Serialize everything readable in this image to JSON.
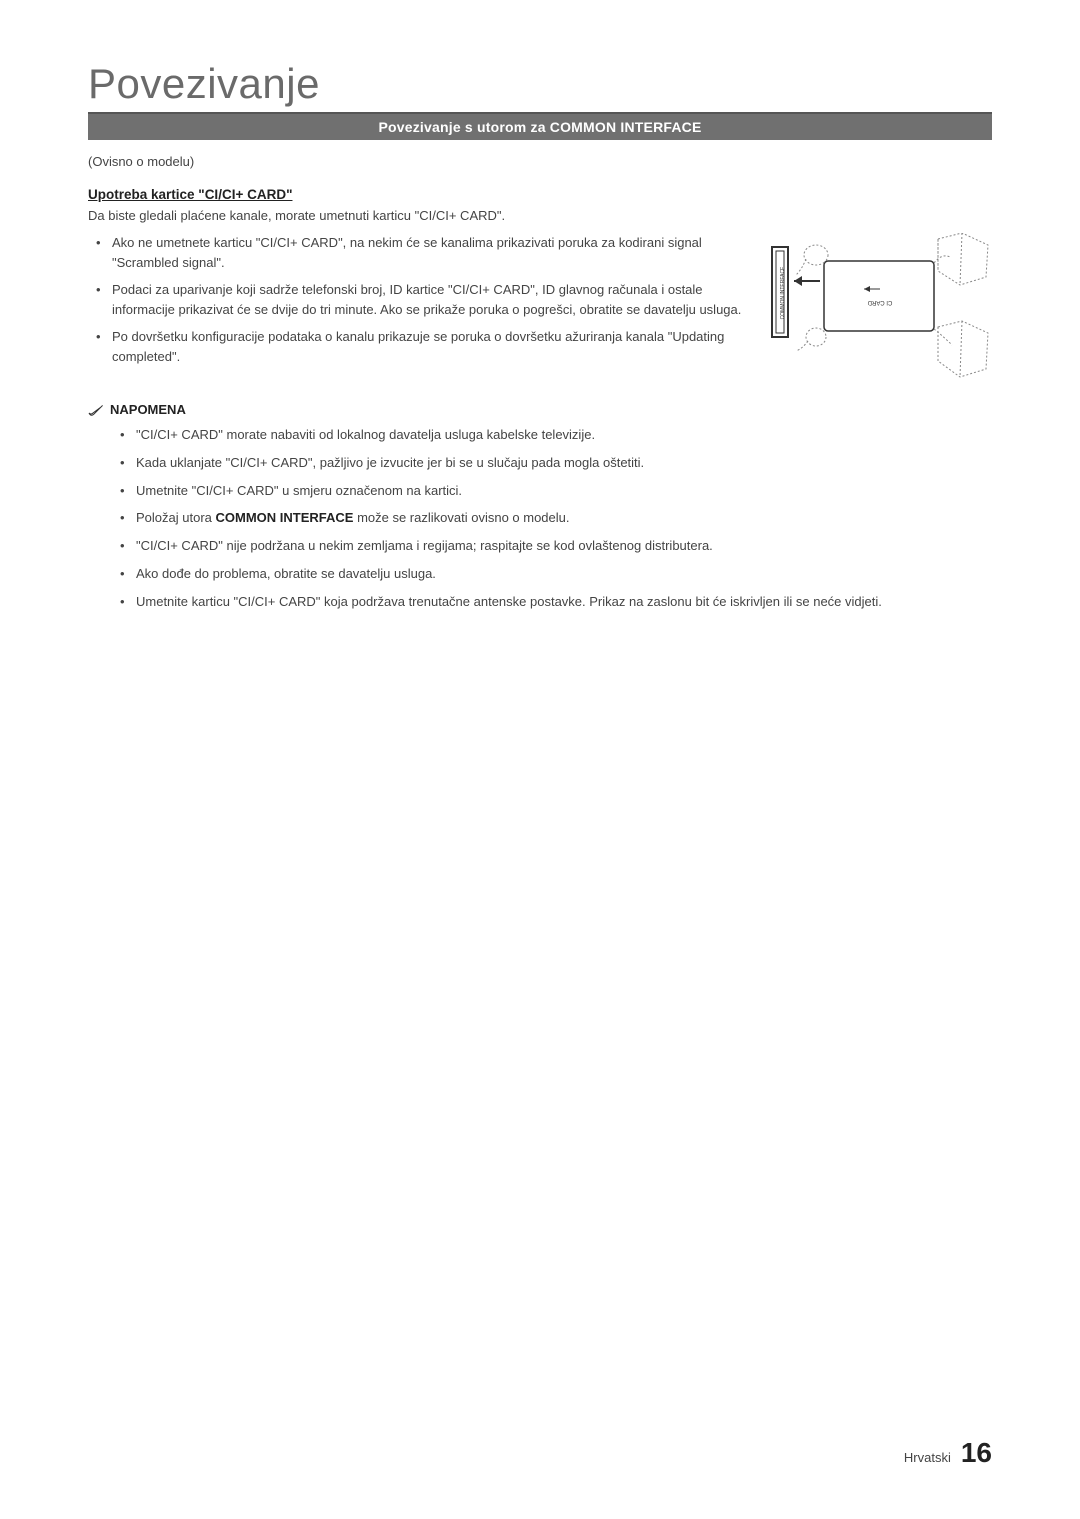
{
  "page": {
    "title": "Povezivanje",
    "section_bar": "Povezivanje s utorom za COMMON INTERFACE",
    "subnote": "(Ovisno o modelu)"
  },
  "usage": {
    "heading": "Upotreba kartice \"CI/CI+ CARD\"",
    "description": "Da biste gledali plaćene kanale, morate umetnuti karticu \"CI/CI+ CARD\".",
    "items": [
      "Ako ne umetnete karticu \"CI/CI+ CARD\", na nekim će se kanalima prikazivati poruka za kodirani signal \"Scrambled signal\".",
      "Podaci za uparivanje koji sadrže telefonski broj, ID kartice \"CI/CI+ CARD\", ID glavnog računala i ostale informacije prikazivat će se dvije do tri minute. Ako se prikaže poruka o pogrešci, obratite se davatelju usluga.",
      "Po dovršetku konfiguracije podataka o kanalu prikazuje se poruka o dovršetku ažuriranja kanala \"Updating completed\"."
    ]
  },
  "notes": {
    "heading": "NAPOMENA",
    "items": [
      "\"CI/CI+ CARD\" morate nabaviti od lokalnog davatelja usluga kabelske televizije.",
      "Kada uklanjate \"CI/CI+ CARD\", pažljivo je izvucite jer bi se u slučaju pada mogla oštetiti.",
      "Umetnite \"CI/CI+ CARD\" u smjeru označenom na kartici.",
      "Položaj utora COMMON INTERFACE može se razlikovati ovisno o modelu.",
      "\"CI/CI+ CARD\" nije podržana u nekim zemljama i regijama; raspitajte se kod ovlaštenog distributera.",
      "Ako dođe do problema, obratite se davatelju usluga.",
      "Umetnite karticu \"CI/CI+ CARD\" koja podržava trenutačne antenske postavke. Prikaz na zaslonu bit će iskrivljen ili se neće vidjeti."
    ],
    "bold_prefix_item3": "COMMON INTERFACE"
  },
  "diagram": {
    "slot_label": "COMMON INTERFACE",
    "card_label": "CI CARD",
    "stroke": "#555555",
    "dash": "2,2"
  },
  "footer": {
    "lang": "Hrvatski",
    "page_number": "16"
  }
}
